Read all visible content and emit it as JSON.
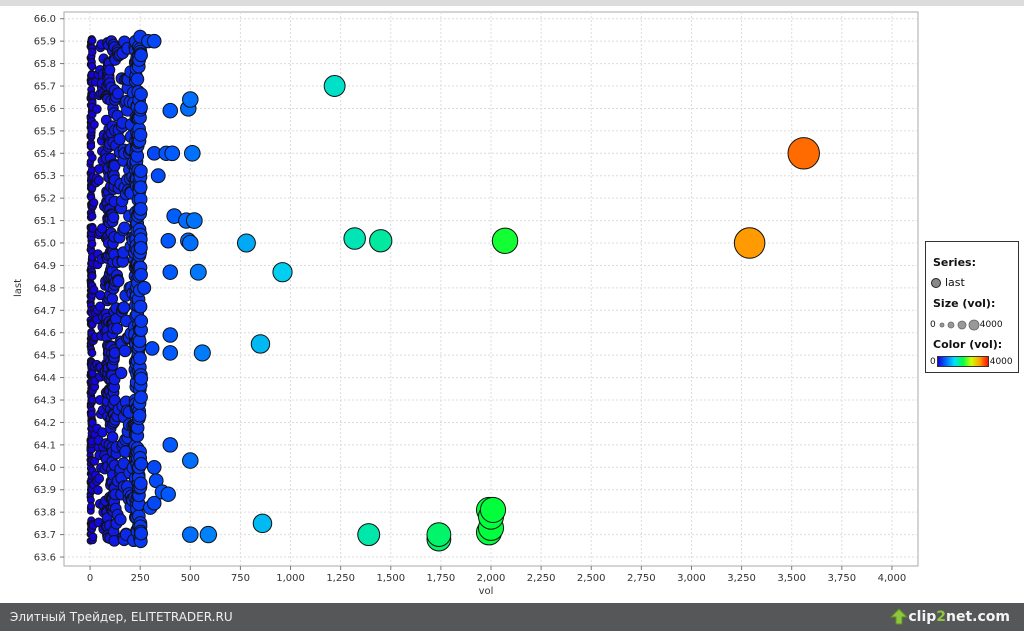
{
  "chart_data": {
    "type": "scatter",
    "xlabel": "vol",
    "ylabel": "last",
    "xlim": [
      -130,
      4130
    ],
    "ylim": [
      63.56,
      66.03
    ],
    "x_ticks": [
      0,
      250,
      500,
      750,
      1000,
      1250,
      1500,
      1750,
      2000,
      2250,
      2500,
      2750,
      3000,
      3250,
      3500,
      3750,
      4000
    ],
    "x_tick_labels": [
      "0",
      "250",
      "500",
      "750",
      "1,000",
      "1,250",
      "1,500",
      "1,750",
      "2,000",
      "2,250",
      "2,500",
      "2,750",
      "3,000",
      "3,250",
      "3,500",
      "3,750",
      "4,000"
    ],
    "y_ticks": [
      63.6,
      63.7,
      63.8,
      63.9,
      64.0,
      64.1,
      64.2,
      64.3,
      64.4,
      64.5,
      64.6,
      64.7,
      64.8,
      64.9,
      65.0,
      65.1,
      65.2,
      65.3,
      65.4,
      65.5,
      65.6,
      65.7,
      65.8,
      65.9,
      66.0
    ],
    "y_tick_labels": [
      "63.6",
      "63.7",
      "63.8",
      "63.9",
      "64.0",
      "64.1",
      "64.2",
      "64.3",
      "64.4",
      "64.5",
      "64.6",
      "64.7",
      "64.8",
      "64.9",
      "65.0",
      "65.1",
      "65.2",
      "65.3",
      "65.4",
      "65.5",
      "65.6",
      "65.7",
      "65.8",
      "65.9",
      "66.0"
    ],
    "grid": true,
    "size_range": [
      0,
      4000
    ],
    "color_range": [
      0,
      4000
    ],
    "series": [
      {
        "name": "last",
        "points": [
          [
            3560,
            65.4
          ],
          [
            3290,
            65.0
          ],
          [
            2070,
            65.01
          ],
          [
            1220,
            65.7
          ],
          [
            1320,
            65.02
          ],
          [
            1450,
            65.01
          ],
          [
            960,
            64.87
          ],
          [
            780,
            65.0
          ],
          [
            850,
            64.55
          ],
          [
            860,
            63.75
          ],
          [
            1740,
            63.68
          ],
          [
            1740,
            63.7
          ],
          [
            1390,
            63.7
          ],
          [
            1990,
            63.71
          ],
          [
            2000,
            63.73
          ],
          [
            2000,
            63.78
          ],
          [
            1990,
            63.81
          ],
          [
            2010,
            63.81
          ],
          [
            590,
            63.7
          ],
          [
            500,
            63.7
          ],
          [
            560,
            64.51
          ],
          [
            540,
            64.87
          ],
          [
            510,
            65.4
          ],
          [
            500,
            65.64
          ],
          [
            490,
            65.6
          ],
          [
            400,
            65.59
          ],
          [
            520,
            65.1
          ],
          [
            480,
            65.1
          ],
          [
            420,
            65.12
          ],
          [
            500,
            65.0
          ],
          [
            490,
            65.01
          ],
          [
            390,
            65.01
          ],
          [
            400,
            64.87
          ],
          [
            400,
            64.59
          ],
          [
            400,
            64.51
          ],
          [
            310,
            64.53
          ],
          [
            400,
            64.1
          ],
          [
            500,
            64.03
          ],
          [
            390,
            63.88
          ],
          [
            320,
            63.84
          ],
          [
            330,
            63.94
          ],
          [
            320,
            64.0
          ],
          [
            340,
            65.3
          ],
          [
            410,
            65.4
          ],
          [
            380,
            65.4
          ],
          [
            320,
            65.4
          ],
          [
            270,
            64.8
          ],
          [
            300,
            63.82
          ],
          [
            320,
            65.9
          ],
          [
            290,
            65.9
          ],
          [
            250,
            65.92
          ],
          [
            360,
            63.89
          ]
        ]
      }
    ],
    "legend": {
      "series_title": "Series:",
      "series_label": "last",
      "size_title": "Size (vol):",
      "size_min": "0",
      "size_max": "4000",
      "color_title": "Color (vol):",
      "color_min": "0",
      "color_max": "4000"
    }
  },
  "footer": {
    "caption": "Элитный Трейдер, ELITETRADER.RU",
    "brand_part1": "clip",
    "brand_part2": "2",
    "brand_part3": "net",
    "brand_part4": ".com"
  }
}
